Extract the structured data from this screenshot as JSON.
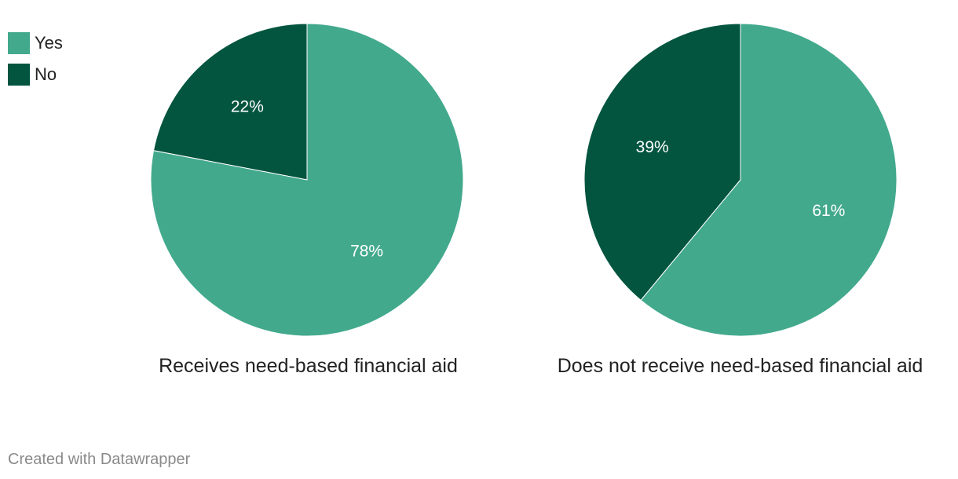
{
  "legend": [
    {
      "label": "Yes",
      "color": "#43a98d"
    },
    {
      "label": "No",
      "color": "#03553f"
    }
  ],
  "chart_data": [
    {
      "type": "pie",
      "title": "Receives need-based financial aid",
      "slices": [
        {
          "label": "No",
          "value": 22,
          "display": "22%",
          "color": "#03553f"
        },
        {
          "label": "Yes",
          "value": 78,
          "display": "78%",
          "color": "#43a98d"
        }
      ]
    },
    {
      "type": "pie",
      "title": "Does not receive need-based financial aid",
      "slices": [
        {
          "label": "No",
          "value": 39,
          "display": "39%",
          "color": "#03553f"
        },
        {
          "label": "Yes",
          "value": 61,
          "display": "61%",
          "color": "#43a98d"
        }
      ]
    }
  ],
  "credit": "Created with Datawrapper"
}
